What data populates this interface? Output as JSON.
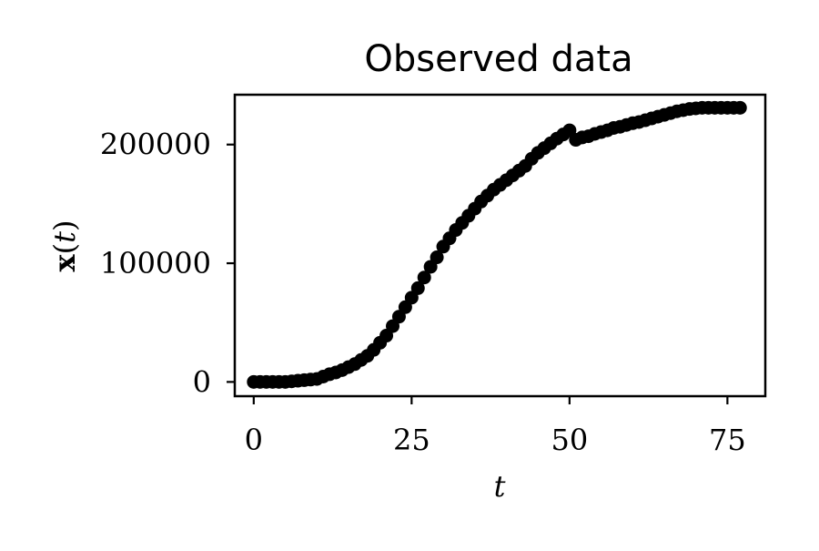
{
  "chart_data": {
    "type": "scatter",
    "title": "Observed data",
    "xlabel": "t",
    "ylabel": {
      "prefix": "x",
      "open": "(",
      "var": "t",
      "close": ")"
    },
    "xlim": [
      -3,
      81
    ],
    "ylim": [
      -12000,
      242000
    ],
    "xticks": [
      0,
      25,
      50,
      75
    ],
    "xtick_labels": [
      "0",
      "25",
      "50",
      "75"
    ],
    "yticks": [
      0,
      100000,
      200000
    ],
    "ytick_labels": [
      "0",
      "100000",
      "200000"
    ],
    "grid": false,
    "legend": "none",
    "marker_color": "#000000",
    "series": [
      {
        "x": [
          0,
          1,
          2,
          3,
          4,
          5,
          6,
          7,
          8,
          9,
          10,
          11,
          12,
          13,
          14,
          15,
          16,
          17,
          18,
          19,
          20,
          21,
          22,
          23,
          24,
          25,
          26,
          27,
          28,
          29,
          30,
          31,
          32,
          33,
          34,
          35,
          36,
          37,
          38,
          39,
          40,
          41,
          42,
          43,
          44,
          45,
          46,
          47,
          48,
          49,
          50,
          51,
          52,
          53,
          54,
          55,
          56,
          57,
          58,
          59,
          60,
          61,
          62,
          63,
          64,
          65,
          66,
          67,
          68,
          69,
          70,
          71,
          72,
          73,
          74,
          75,
          76,
          77
        ],
        "y": [
          0,
          0,
          0,
          0,
          0,
          0,
          500,
          1000,
          1500,
          2000,
          2500,
          4500,
          6500,
          8000,
          10000,
          12500,
          15000,
          18500,
          22000,
          27000,
          33000,
          39000,
          47000,
          55000,
          63000,
          71000,
          79000,
          88000,
          97000,
          105000,
          114000,
          121000,
          128000,
          134000,
          140000,
          146000,
          152000,
          157000,
          162000,
          166000,
          170000,
          174000,
          178000,
          182000,
          188000,
          193000,
          197000,
          201000,
          205000,
          208500,
          212000,
          204000,
          206000,
          207000,
          209000,
          210500,
          212000,
          214000,
          215000,
          216500,
          218000,
          219000,
          220500,
          222000,
          223500,
          225000,
          226500,
          228000,
          229000,
          230000,
          230500,
          231000,
          231000,
          231000,
          231000,
          231000,
          231000,
          231000
        ]
      }
    ]
  }
}
